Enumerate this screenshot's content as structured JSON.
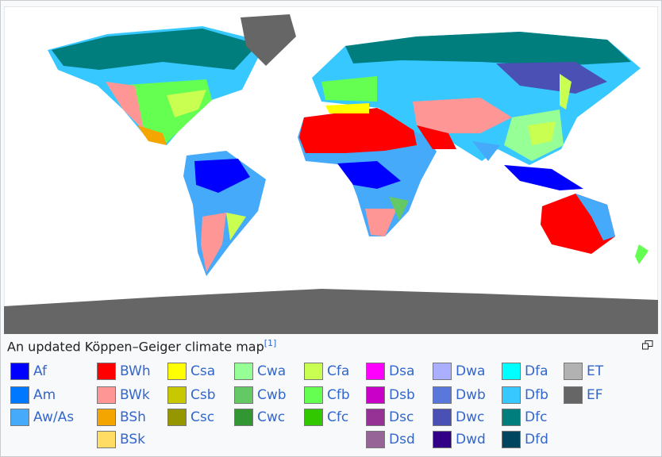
{
  "caption": {
    "text": "An updated Köppen–Geiger climate map",
    "ref": "[1]"
  },
  "legend": {
    "columns": [
      [
        {
          "label": "Af",
          "color": "#0000ff"
        },
        {
          "label": "Am",
          "color": "#0078ff"
        },
        {
          "label": "Aw/As",
          "color": "#46aafa"
        }
      ],
      [
        {
          "label": "BWh",
          "color": "#ff0000"
        },
        {
          "label": "BWk",
          "color": "#ff9696"
        },
        {
          "label": "BSh",
          "color": "#f5a500"
        },
        {
          "label": "BSk",
          "color": "#ffdc64"
        }
      ],
      [
        {
          "label": "Csa",
          "color": "#ffff00"
        },
        {
          "label": "Csb",
          "color": "#c8c800"
        },
        {
          "label": "Csc",
          "color": "#969600"
        }
      ],
      [
        {
          "label": "Cwa",
          "color": "#96ff96"
        },
        {
          "label": "Cwb",
          "color": "#64c864"
        },
        {
          "label": "Cwc",
          "color": "#329632"
        }
      ],
      [
        {
          "label": "Cfa",
          "color": "#c8ff50"
        },
        {
          "label": "Cfb",
          "color": "#64ff50"
        },
        {
          "label": "Cfc",
          "color": "#32c800"
        }
      ],
      [
        {
          "label": "Dsa",
          "color": "#ff00ff"
        },
        {
          "label": "Dsb",
          "color": "#c800c8"
        },
        {
          "label": "Dsc",
          "color": "#963296"
        },
        {
          "label": "Dsd",
          "color": "#966496"
        }
      ],
      [
        {
          "label": "Dwa",
          "color": "#aaafff"
        },
        {
          "label": "Dwb",
          "color": "#5a78dc"
        },
        {
          "label": "Dwc",
          "color": "#4b50b4"
        },
        {
          "label": "Dwd",
          "color": "#320087"
        }
      ],
      [
        {
          "label": "Dfa",
          "color": "#00ffff"
        },
        {
          "label": "Dfb",
          "color": "#37c8ff"
        },
        {
          "label": "Dfc",
          "color": "#007d7d"
        },
        {
          "label": "Dfd",
          "color": "#00465f"
        }
      ],
      [
        {
          "label": "ET",
          "color": "#b2b2b2"
        },
        {
          "label": "EF",
          "color": "#666666"
        }
      ]
    ]
  }
}
